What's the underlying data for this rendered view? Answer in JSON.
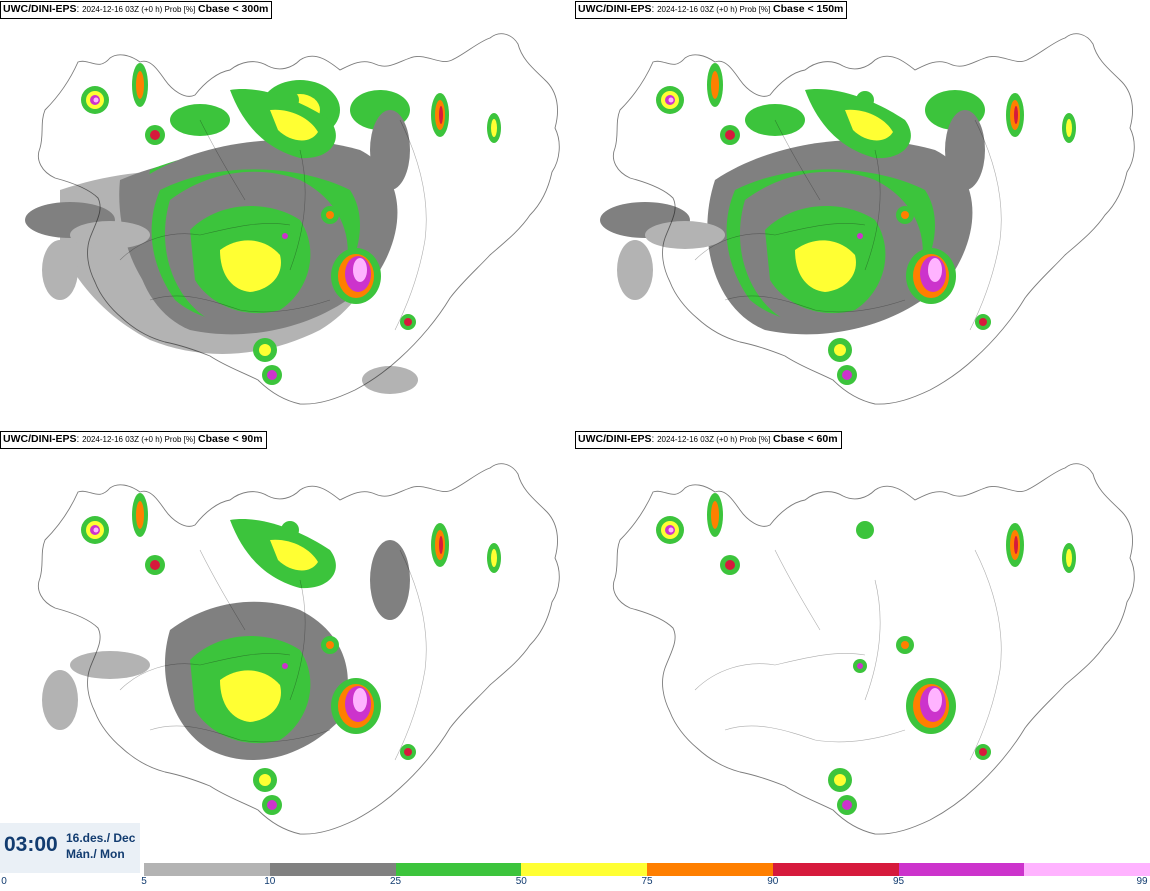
{
  "panels": [
    {
      "source": "UWC/DINI-EPS",
      "run": "2024-12-16 03Z (+0 h) Prob [%]",
      "threshold": "Cbase < 300m",
      "level": 4
    },
    {
      "source": "UWC/DINI-EPS",
      "run": "2024-12-16 03Z (+0 h) Prob [%]",
      "threshold": "Cbase < 150m",
      "level": 3
    },
    {
      "source": "UWC/DINI-EPS",
      "run": "2024-12-16 03Z (+0 h) Prob [%]",
      "threshold": "Cbase < 90m",
      "level": 2
    },
    {
      "source": "UWC/DINI-EPS",
      "run": "2024-12-16 03Z (+0 h) Prob [%]",
      "threshold": "Cbase < 60m",
      "level": 1
    }
  ],
  "valid_time": {
    "time": "03:00",
    "date_line1": "16.des./ Dec",
    "date_line2": "Mán./ Mon"
  },
  "legend": {
    "ticks": [
      "0",
      "5",
      "10",
      "25",
      "50",
      "75",
      "90",
      "95",
      "99"
    ],
    "colors": [
      "#b3b3b3",
      "#808080",
      "#3cc43c",
      "#ffff33",
      "#ff7f00",
      "#d61a3c",
      "#cc33cc",
      "#ffb3ff"
    ]
  }
}
